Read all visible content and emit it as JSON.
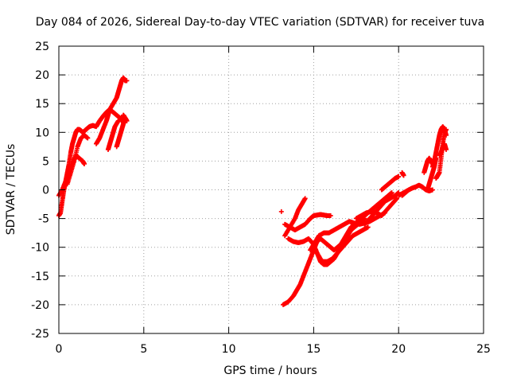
{
  "chart_data": {
    "type": "scatter",
    "title": "Day 084 of 2026, Sidereal Day-to-day VTEC variation (SDTVAR) for receiver tuva",
    "xlabel": "GPS time / hours",
    "ylabel": "SDTVAR / TECUs",
    "xlim": [
      0,
      25
    ],
    "ylim": [
      -25,
      25
    ],
    "x_ticks": [
      "0",
      "5",
      "10",
      "15",
      "20",
      "25"
    ],
    "y_ticks": [
      "25",
      "20",
      "15",
      "10",
      "5",
      "0",
      "-5",
      "-10",
      "-15",
      "-20",
      "-25"
    ],
    "grid": true,
    "marker": "+",
    "marker_color": "#ff0000",
    "series": [
      {
        "x": [
          0.0,
          0.1,
          0.2,
          0.3,
          0.4,
          0.5,
          0.6,
          0.7,
          0.8,
          0.9,
          1.0,
          1.1,
          1.2,
          1.3,
          1.4,
          1.5,
          1.6,
          1.8,
          2.0,
          2.2,
          2.4,
          2.6,
          2.8,
          3.0,
          3.2,
          3.4,
          3.6,
          3.7,
          3.8,
          3.9,
          4.0
        ],
        "y": [
          -4.5,
          -4.0,
          -2.0,
          0.0,
          1.5,
          3.0,
          4.5,
          6.5,
          8.0,
          9.0,
          10.0,
          10.5,
          10.5,
          10.3,
          10.0,
          10.2,
          10.5,
          11.0,
          11.2,
          11.0,
          12.0,
          12.8,
          13.5,
          14.0,
          13.5,
          13.0,
          12.5,
          12.0,
          13.0,
          12.5,
          12.0
        ]
      },
      {
        "x": [
          0.0,
          0.2,
          0.4,
          0.6,
          0.8,
          1.0,
          1.2,
          1.4,
          1.5
        ],
        "y": [
          -1.0,
          0.0,
          1.5,
          3.0,
          4.5,
          6.0,
          5.5,
          5.0,
          4.5
        ]
      },
      {
        "x": [
          0.5,
          0.7,
          0.9,
          1.1,
          1.3,
          1.5,
          1.7
        ],
        "y": [
          1.0,
          3.0,
          5.0,
          7.5,
          9.0,
          9.5,
          9.0
        ]
      },
      {
        "x": [
          2.2,
          2.4,
          2.6,
          2.8,
          2.9,
          3.0,
          3.2,
          3.4,
          3.5,
          3.6,
          3.7,
          3.8,
          3.9,
          4.0
        ],
        "y": [
          8.0,
          9.0,
          10.5,
          12.0,
          13.0,
          14.0,
          15.0,
          16.0,
          17.0,
          18.0,
          19.0,
          19.5,
          19.0,
          19.0
        ]
      },
      {
        "x": [
          3.4,
          3.5,
          3.6,
          3.7,
          3.8,
          3.9,
          4.0
        ],
        "y": [
          7.5,
          8.5,
          9.5,
          10.5,
          11.5,
          12.5,
          12.0
        ]
      },
      {
        "x": [
          2.9,
          3.0,
          3.1,
          3.2,
          3.3,
          3.5
        ],
        "y": [
          7.0,
          8.0,
          9.0,
          10.0,
          11.0,
          12.0
        ]
      },
      {
        "x": [
          13.1
        ],
        "y": [
          -3.8
        ]
      },
      {
        "x": [
          13.2,
          13.5,
          13.8,
          14.0,
          14.2,
          14.4,
          14.6,
          14.8,
          15.0,
          15.2,
          15.4,
          15.6,
          15.8,
          16.0,
          16.2,
          16.4,
          16.6,
          16.8,
          17.0,
          17.2,
          17.4,
          17.6,
          17.8,
          18.0,
          18.2,
          18.4,
          18.6,
          18.8,
          19.0,
          19.2,
          19.4,
          19.6
        ],
        "y": [
          -20.0,
          -19.5,
          -18.5,
          -17.5,
          -16.5,
          -15.0,
          -13.5,
          -12.0,
          -10.5,
          -9.0,
          -8.5,
          -9.0,
          -9.5,
          -10.0,
          -10.5,
          -10.0,
          -9.5,
          -8.5,
          -7.5,
          -6.5,
          -6.0,
          -5.5,
          -5.0,
          -4.5,
          -4.0,
          -3.5,
          -3.0,
          -2.5,
          -2.0,
          -1.5,
          -1.0,
          -0.5
        ]
      },
      {
        "x": [
          13.3,
          13.6,
          13.9,
          14.1,
          14.3,
          14.5
        ],
        "y": [
          -8.0,
          -6.5,
          -5.0,
          -3.5,
          -2.5,
          -1.5
        ]
      },
      {
        "x": [
          13.3,
          13.6,
          13.9,
          14.2,
          14.5,
          14.8,
          15.0,
          15.2,
          15.4,
          15.6,
          15.8,
          16.0
        ],
        "y": [
          -6.0,
          -6.5,
          -7.0,
          -6.5,
          -6.0,
          -5.0,
          -4.5,
          -4.4,
          -4.3,
          -4.4,
          -4.5,
          -4.5
        ]
      },
      {
        "x": [
          13.5,
          13.8,
          14.1,
          14.4,
          14.7,
          15.0,
          15.2,
          15.4,
          15.6,
          15.8,
          16.0,
          16.2,
          16.4,
          16.6,
          16.8,
          17.0,
          17.2,
          17.4,
          17.6,
          17.8,
          18.0
        ],
        "y": [
          -8.5,
          -9.0,
          -9.2,
          -9.0,
          -8.5,
          -9.5,
          -11.0,
          -12.5,
          -13.0,
          -13.0,
          -12.5,
          -12.0,
          -11.0,
          -10.0,
          -9.0,
          -8.0,
          -7.0,
          -6.5,
          -6.0,
          -5.5,
          -5.0
        ]
      },
      {
        "x": [
          14.8,
          15.0,
          15.3,
          15.6,
          15.9,
          16.2,
          16.5,
          16.8,
          17.1,
          17.4,
          17.7,
          18.0,
          18.3,
          18.6,
          18.9,
          19.2
        ],
        "y": [
          -10.5,
          -9.5,
          -8.0,
          -7.5,
          -7.5,
          -7.0,
          -6.5,
          -6.0,
          -5.5,
          -5.8,
          -6.0,
          -5.8,
          -5.5,
          -5.0,
          -4.5,
          -4.0
        ]
      },
      {
        "x": [
          15.2,
          15.5,
          15.8,
          16.1,
          16.4,
          16.7,
          17.0,
          17.3,
          17.6,
          17.9,
          18.2
        ],
        "y": [
          -11.0,
          -12.5,
          -12.5,
          -12.0,
          -11.0,
          -10.0,
          -9.0,
          -8.0,
          -7.5,
          -7.0,
          -6.5
        ]
      },
      {
        "x": [
          17.5,
          17.8,
          18.1,
          18.4,
          18.7,
          19.0,
          19.3,
          19.6,
          19.9
        ],
        "y": [
          -5.0,
          -4.5,
          -4.0,
          -3.8,
          -4.0,
          -4.5,
          -3.5,
          -2.5,
          -1.5
        ]
      },
      {
        "x": [
          18.0,
          18.3,
          18.6,
          18.9,
          19.2,
          19.5,
          19.8,
          20.0
        ],
        "y": [
          -6.0,
          -5.0,
          -4.0,
          -3.0,
          -2.0,
          -1.5,
          -1.0,
          -0.5
        ]
      },
      {
        "x": [
          19.0,
          19.2,
          19.4,
          19.6,
          19.8,
          20.0
        ],
        "y": [
          0.0,
          0.5,
          1.0,
          1.5,
          2.0,
          2.3
        ]
      },
      {
        "x": [
          20.0,
          20.3,
          20.6
        ],
        "y": [
          -1.0,
          -0.5,
          0.0
        ]
      },
      {
        "x": [
          20.2,
          20.3
        ],
        "y": [
          3.0,
          2.5
        ]
      },
      {
        "x": [
          20.2,
          20.4,
          20.6,
          20.8,
          21.0,
          21.2,
          21.4,
          21.6,
          21.8,
          22.0
        ],
        "y": [
          -1.0,
          -0.5,
          0.0,
          0.3,
          0.5,
          0.8,
          0.5,
          0.0,
          -0.2,
          0.0
        ]
      },
      {
        "x": [
          21.5,
          21.6,
          21.7,
          21.8,
          21.9,
          22.0
        ],
        "y": [
          3.0,
          4.0,
          5.0,
          5.5,
          5.0,
          4.5
        ]
      },
      {
        "x": [
          21.7,
          21.8,
          21.9,
          22.0,
          22.1,
          22.2
        ],
        "y": [
          0.0,
          1.0,
          2.0,
          3.0,
          4.0,
          5.5
        ]
      },
      {
        "x": [
          22.0,
          22.1,
          22.2,
          22.3,
          22.4,
          22.5,
          22.6,
          22.7,
          22.8
        ],
        "y": [
          4.0,
          5.0,
          6.5,
          8.0,
          9.5,
          10.5,
          11.0,
          10.5,
          9.5
        ]
      },
      {
        "x": [
          22.2,
          22.3,
          22.4,
          22.5,
          22.6,
          22.7,
          22.8
        ],
        "y": [
          2.0,
          2.5,
          3.0,
          5.5,
          8.0,
          10.0,
          10.5
        ]
      },
      {
        "x": [
          22.4,
          22.5,
          22.6,
          22.7,
          22.8
        ],
        "y": [
          6.0,
          6.5,
          7.5,
          8.0,
          7.0
        ]
      }
    ]
  }
}
